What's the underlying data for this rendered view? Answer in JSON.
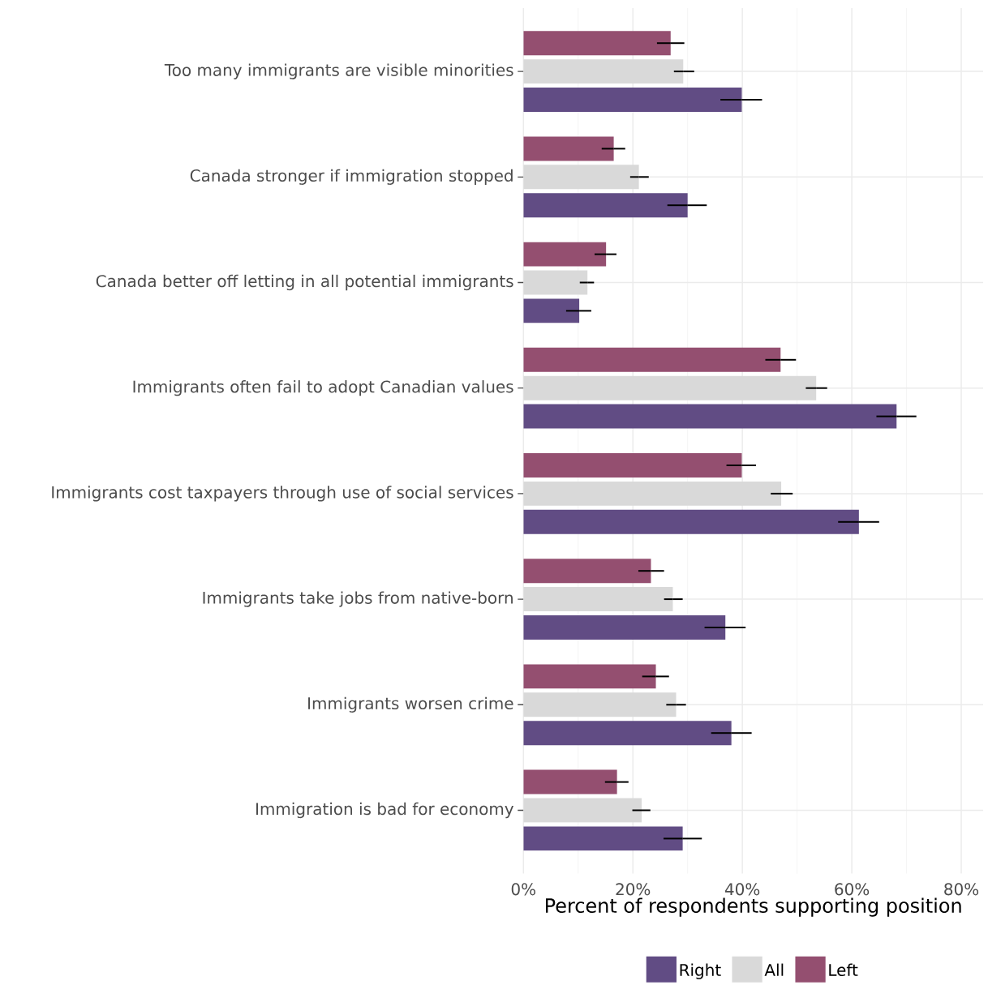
{
  "chart_data": {
    "type": "bar",
    "orientation": "horizontal",
    "categories": [
      "Too many immigrants are visible minorities",
      "Canada stronger if immigration stopped",
      "Canada better off letting in all potential immigrants",
      "Immigrants often fail to adopt Canadian values",
      "Immigrants cost taxpayers through use of social services",
      "Immigrants take jobs from native-born",
      "Immigrants worsen crime",
      "Immigration is bad for economy"
    ],
    "series": [
      {
        "name": "Right",
        "color": "#614c84",
        "values": [
          39.9,
          30.0,
          10.2,
          68.2,
          61.3,
          36.9,
          38.0,
          29.1
        ],
        "errors": [
          [
            36.0,
            43.6
          ],
          [
            26.3,
            33.5
          ],
          [
            7.8,
            12.4
          ],
          [
            64.5,
            71.8
          ],
          [
            57.5,
            65.0
          ],
          [
            33.1,
            40.6
          ],
          [
            34.3,
            41.7
          ],
          [
            25.6,
            32.6
          ]
        ]
      },
      {
        "name": "All",
        "color": "#d9d9d9",
        "values": [
          29.2,
          21.1,
          11.7,
          53.5,
          47.1,
          27.3,
          27.9,
          21.6
        ],
        "errors": [
          [
            27.5,
            31.2
          ],
          [
            19.5,
            22.9
          ],
          [
            10.3,
            12.9
          ],
          [
            51.6,
            55.5
          ],
          [
            45.2,
            49.2
          ],
          [
            25.7,
            29.1
          ],
          [
            26.1,
            29.7
          ],
          [
            19.9,
            23.2
          ]
        ]
      },
      {
        "name": "Left",
        "color": "#944f70",
        "values": [
          26.9,
          16.5,
          15.1,
          47.0,
          39.9,
          23.3,
          24.2,
          17.1
        ],
        "errors": [
          [
            24.4,
            29.4
          ],
          [
            14.3,
            18.6
          ],
          [
            13.0,
            17.0
          ],
          [
            44.2,
            49.8
          ],
          [
            37.1,
            42.5
          ],
          [
            21.0,
            25.7
          ],
          [
            21.7,
            26.6
          ],
          [
            14.9,
            19.2
          ]
        ]
      }
    ],
    "xlabel": "Percent of respondents supporting position",
    "xlim": [
      0,
      84
    ],
    "xticks": [
      {
        "value": 0,
        "label": "0%"
      },
      {
        "value": 20,
        "label": "20%"
      },
      {
        "value": 40,
        "label": "40%"
      },
      {
        "value": 60,
        "label": "60%"
      },
      {
        "value": 80,
        "label": "80%"
      }
    ],
    "grid": true,
    "legend": "bottom"
  }
}
